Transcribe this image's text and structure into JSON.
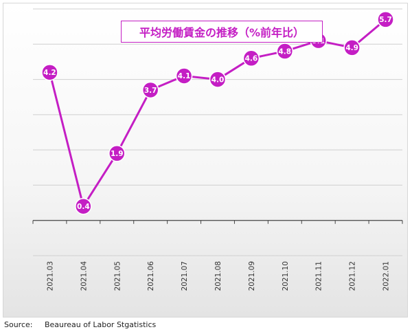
{
  "chart_data": {
    "type": "line",
    "title": "平均労働賃金の推移（%前年比）",
    "categories": [
      "2021.03",
      "2021.04",
      "2021.05",
      "2021.06",
      "2021.07",
      "2021.08",
      "2021.09",
      "2021.10",
      "2021.11",
      "2021.12",
      "2022.01"
    ],
    "series": [
      {
        "values": [
          4.2,
          0.4,
          1.9,
          3.7,
          4.1,
          4.0,
          4.6,
          4.8,
          5.1,
          4.9,
          5.7
        ]
      }
    ],
    "data_labels": [
      "4.2",
      "0.4",
      "1.9",
      "3.7",
      "4.1",
      "4.0",
      "4.6",
      "4.8",
      "5.1",
      "4.9",
      "5.7"
    ],
    "ylim": [
      -1.0,
      6.0
    ],
    "grid": true,
    "legend": "none",
    "colors": {
      "line": "#c41ec4",
      "marker": "#c41ec4",
      "label": "#ffffff",
      "title": "#c41ec4"
    }
  },
  "source": "Source:     Beaureau of Labor Stgatistics"
}
